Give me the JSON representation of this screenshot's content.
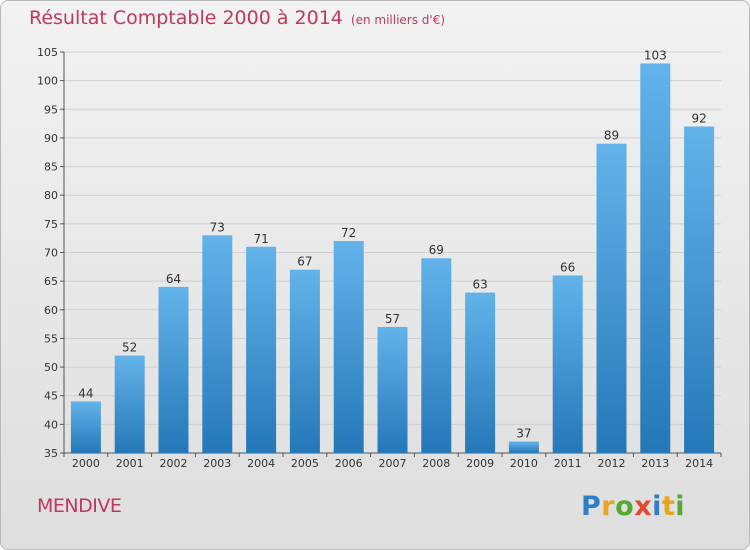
{
  "title": "Résultat Comptable 2000 à 2014",
  "unit": "(en milliers d'€)",
  "commune": "MENDIVE",
  "logo": {
    "letters": [
      "P",
      "r",
      "o",
      "x",
      "i",
      "t",
      "i"
    ],
    "colors": [
      "#2f7fc8",
      "#e8a517",
      "#53a933",
      "#e24a2f",
      "#2f7fc8",
      "#e8a517",
      "#53a933"
    ]
  },
  "colors": {
    "bar_top": "#63b3ea",
    "bar_bottom": "#2578b8",
    "title": "#c0395c"
  },
  "chart_data": {
    "type": "bar",
    "categories": [
      "2000",
      "2001",
      "2002",
      "2003",
      "2004",
      "2005",
      "2006",
      "2007",
      "2008",
      "2009",
      "2010",
      "2011",
      "2012",
      "2013",
      "2014"
    ],
    "values": [
      44,
      52,
      64,
      73,
      71,
      67,
      72,
      57,
      69,
      63,
      37,
      66,
      89,
      103,
      92
    ],
    "ylim": [
      35,
      105
    ],
    "yticks": [
      35,
      40,
      45,
      50,
      55,
      60,
      65,
      70,
      75,
      80,
      85,
      90,
      95,
      100,
      105
    ],
    "grid": true,
    "data_labels": true
  }
}
